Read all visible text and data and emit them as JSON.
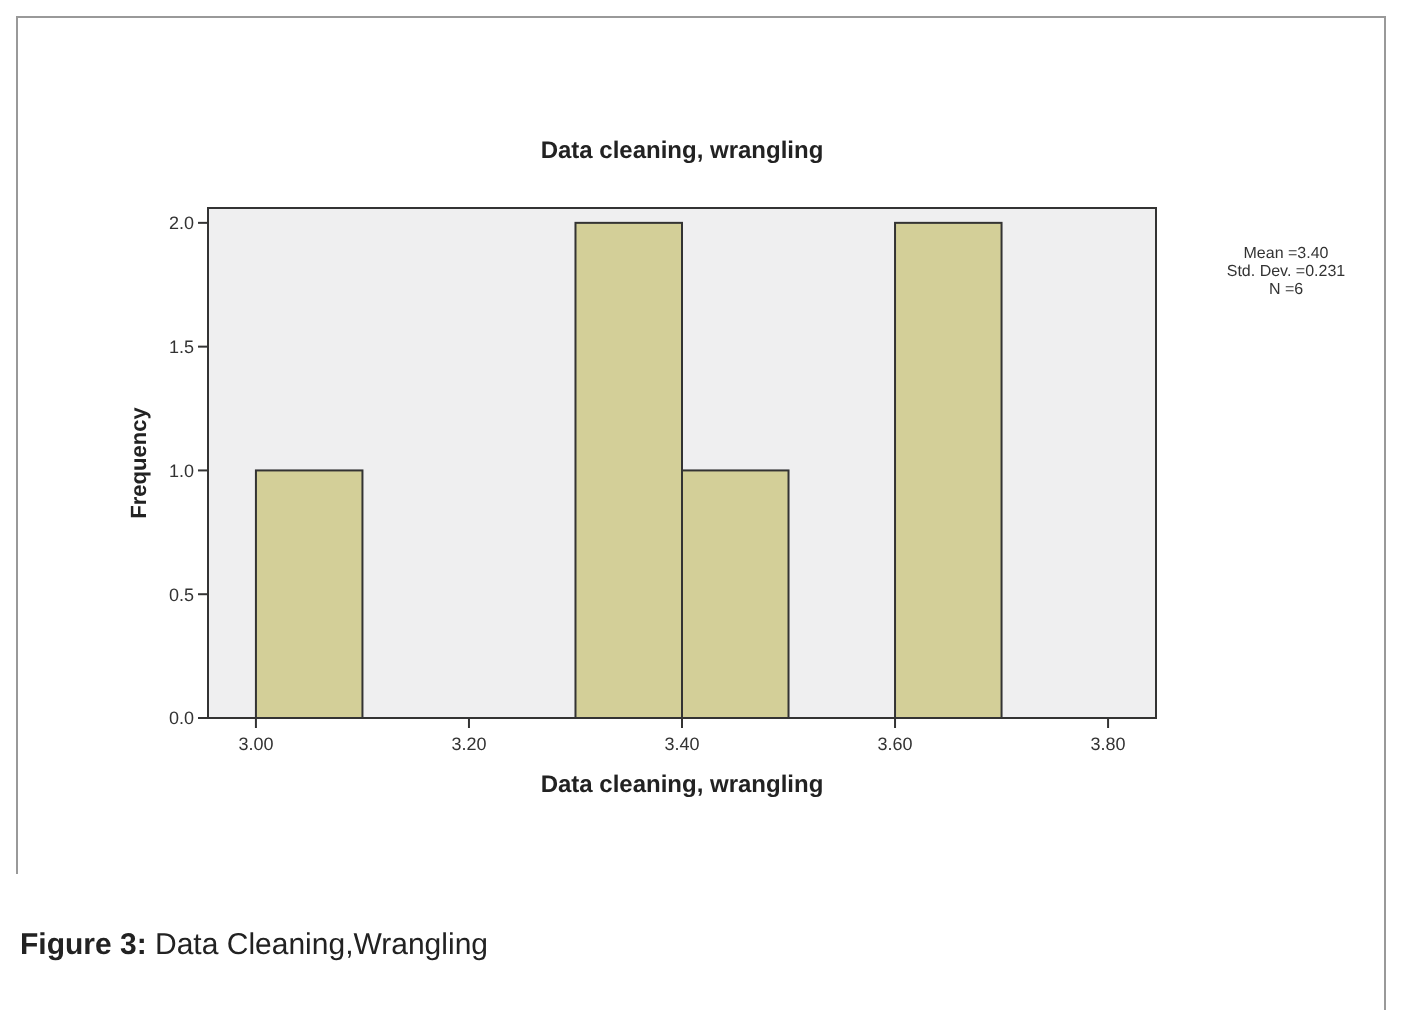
{
  "chart_data": {
    "type": "histogram",
    "title": "Data cleaning, wrangling",
    "xlabel": "Data cleaning, wrangling",
    "ylabel": "Frequency",
    "bins": [
      3.0,
      3.1,
      3.2,
      3.3,
      3.4,
      3.5,
      3.6,
      3.7
    ],
    "values": [
      1,
      0,
      0,
      2,
      1,
      0,
      2
    ],
    "color": "#d3cf98",
    "xlim": [
      2.955,
      3.845
    ],
    "xticks": [
      {
        "value": 3.0,
        "label": "3.00"
      },
      {
        "value": 3.2,
        "label": "3.20"
      },
      {
        "value": 3.4,
        "label": "3.40"
      },
      {
        "value": 3.6,
        "label": "3.60"
      },
      {
        "value": 3.8,
        "label": "3.80"
      }
    ],
    "ylim": [
      0,
      2.06
    ],
    "yticks": [
      {
        "value": 0,
        "label": "0.0"
      },
      {
        "value": 0.5,
        "label": "0.5"
      },
      {
        "value": 1,
        "label": "1.0"
      },
      {
        "value": 1.5,
        "label": "1.5"
      },
      {
        "value": 2,
        "label": "2.0"
      }
    ],
    "grid": false,
    "annotations": [
      "Mean =3.40",
      "Std. Dev. =0.231",
      "N =6",
      "Figure 3: Data Cleaning,Wrangling"
    ]
  }
}
